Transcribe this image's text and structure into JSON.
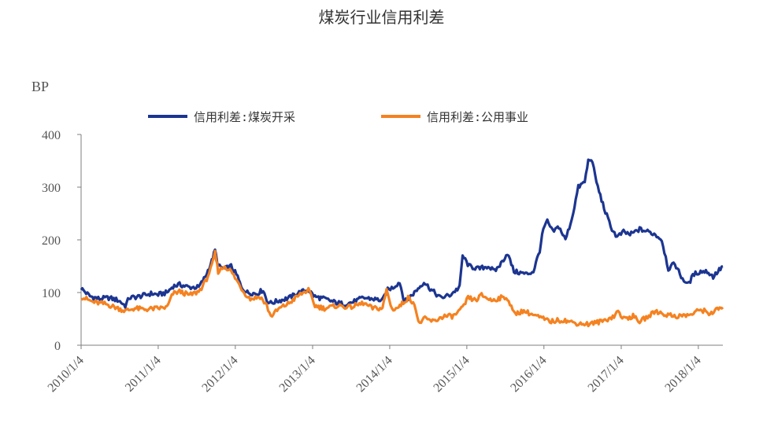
{
  "page": {
    "title": "煤炭行业信用利差"
  },
  "chart_data": {
    "type": "line",
    "title": "煤炭行业信用利差",
    "ylabel": "BP",
    "xlabel": "",
    "ylim": [
      0,
      400
    ],
    "yticks": [
      0,
      100,
      200,
      300,
      400
    ],
    "xlim": [
      "2010-01-04",
      "2018-04-30"
    ],
    "xticks": [
      "2010/1/4",
      "2011/1/4",
      "2012/1/4",
      "2013/1/4",
      "2014/1/4",
      "2015/1/4",
      "2016/1/4",
      "2017/1/4",
      "2018/1/4"
    ],
    "grid": false,
    "legend_position": "top",
    "series": [
      {
        "name": "信用利差:煤炭开采",
        "color": "#1c3591",
        "points": [
          [
            "2010-01-04",
            108
          ],
          [
            "2010-02-15",
            93
          ],
          [
            "2010-04-01",
            88
          ],
          [
            "2010-05-15",
            90
          ],
          [
            "2010-07-01",
            85
          ],
          [
            "2010-08-01",
            75
          ],
          [
            "2010-08-20",
            90
          ],
          [
            "2010-10-01",
            92
          ],
          [
            "2010-12-01",
            98
          ],
          [
            "2011-01-04",
            96
          ],
          [
            "2011-02-15",
            100
          ],
          [
            "2011-03-15",
            112
          ],
          [
            "2011-04-15",
            115
          ],
          [
            "2011-06-01",
            110
          ],
          [
            "2011-07-15",
            110
          ],
          [
            "2011-08-15",
            130
          ],
          [
            "2011-09-15",
            160
          ],
          [
            "2011-09-30",
            180
          ],
          [
            "2011-10-15",
            150
          ],
          [
            "2011-11-15",
            145
          ],
          [
            "2011-12-15",
            150
          ],
          [
            "2012-01-15",
            130
          ],
          [
            "2012-02-01",
            110
          ],
          [
            "2012-03-01",
            100
          ],
          [
            "2012-04-15",
            98
          ],
          [
            "2012-05-15",
            105
          ],
          [
            "2012-06-01",
            85
          ],
          [
            "2012-06-20",
            80
          ],
          [
            "2012-08-01",
            85
          ],
          [
            "2012-09-15",
            90
          ],
          [
            "2012-11-01",
            100
          ],
          [
            "2012-12-15",
            105
          ],
          [
            "2013-01-15",
            92
          ],
          [
            "2013-03-01",
            88
          ],
          [
            "2013-04-15",
            82
          ],
          [
            "2013-06-01",
            78
          ],
          [
            "2013-07-15",
            82
          ],
          [
            "2013-09-01",
            90
          ],
          [
            "2013-10-15",
            88
          ],
          [
            "2013-12-01",
            85
          ],
          [
            "2013-12-25",
            105
          ],
          [
            "2014-01-20",
            110
          ],
          [
            "2014-02-20",
            120
          ],
          [
            "2014-03-15",
            82
          ],
          [
            "2014-05-01",
            100
          ],
          [
            "2014-06-15",
            120
          ],
          [
            "2014-07-20",
            105
          ],
          [
            "2014-09-01",
            90
          ],
          [
            "2014-10-15",
            95
          ],
          [
            "2014-11-15",
            105
          ],
          [
            "2014-12-01",
            110
          ],
          [
            "2014-12-15",
            170
          ],
          [
            "2015-01-15",
            150
          ],
          [
            "2015-03-01",
            145
          ],
          [
            "2015-04-15",
            150
          ],
          [
            "2015-05-15",
            140
          ],
          [
            "2015-06-15",
            155
          ],
          [
            "2015-07-15",
            175
          ],
          [
            "2015-08-15",
            140
          ],
          [
            "2015-10-15",
            135
          ],
          [
            "2015-11-15",
            140
          ],
          [
            "2015-12-15",
            180
          ],
          [
            "2016-01-01",
            220
          ],
          [
            "2016-01-20",
            235
          ],
          [
            "2016-02-15",
            215
          ],
          [
            "2016-03-15",
            225
          ],
          [
            "2016-04-15",
            200
          ],
          [
            "2016-05-15",
            240
          ],
          [
            "2016-06-15",
            300
          ],
          [
            "2016-07-15",
            310
          ],
          [
            "2016-08-01",
            350
          ],
          [
            "2016-08-15",
            355
          ],
          [
            "2016-09-15",
            300
          ],
          [
            "2016-10-15",
            260
          ],
          [
            "2016-11-15",
            225
          ],
          [
            "2016-12-15",
            205
          ],
          [
            "2017-01-15",
            215
          ],
          [
            "2017-02-15",
            210
          ],
          [
            "2017-04-01",
            220
          ],
          [
            "2017-05-15",
            215
          ],
          [
            "2017-06-15",
            210
          ],
          [
            "2017-07-15",
            200
          ],
          [
            "2017-08-15",
            145
          ],
          [
            "2017-09-15",
            155
          ],
          [
            "2017-10-15",
            130
          ],
          [
            "2017-11-15",
            115
          ],
          [
            "2017-12-15",
            135
          ],
          [
            "2018-01-15",
            140
          ],
          [
            "2018-02-15",
            140
          ],
          [
            "2018-03-15",
            130
          ],
          [
            "2018-04-30",
            150
          ]
        ]
      },
      {
        "name": "信用利差:公用事业",
        "color": "#f58220",
        "points": [
          [
            "2010-01-04",
            92
          ],
          [
            "2010-03-01",
            82
          ],
          [
            "2010-05-01",
            78
          ],
          [
            "2010-06-15",
            72
          ],
          [
            "2010-08-01",
            65
          ],
          [
            "2010-09-15",
            70
          ],
          [
            "2010-11-01",
            68
          ],
          [
            "2011-01-04",
            70
          ],
          [
            "2011-02-15",
            72
          ],
          [
            "2011-03-15",
            98
          ],
          [
            "2011-04-15",
            102
          ],
          [
            "2011-06-01",
            95
          ],
          [
            "2011-07-15",
            102
          ],
          [
            "2011-08-15",
            120
          ],
          [
            "2011-09-15",
            150
          ],
          [
            "2011-09-30",
            175
          ],
          [
            "2011-10-15",
            140
          ],
          [
            "2011-11-15",
            150
          ],
          [
            "2011-12-15",
            140
          ],
          [
            "2012-01-15",
            120
          ],
          [
            "2012-02-15",
            100
          ],
          [
            "2012-03-15",
            88
          ],
          [
            "2012-05-01",
            92
          ],
          [
            "2012-06-01",
            75
          ],
          [
            "2012-06-20",
            55
          ],
          [
            "2012-08-01",
            70
          ],
          [
            "2012-09-15",
            80
          ],
          [
            "2012-11-01",
            95
          ],
          [
            "2012-12-15",
            105
          ],
          [
            "2013-01-15",
            75
          ],
          [
            "2013-03-01",
            70
          ],
          [
            "2013-05-01",
            75
          ],
          [
            "2013-07-01",
            72
          ],
          [
            "2013-09-01",
            80
          ],
          [
            "2013-10-15",
            70
          ],
          [
            "2013-12-01",
            70
          ],
          [
            "2013-12-20",
            105
          ],
          [
            "2014-01-15",
            68
          ],
          [
            "2014-02-15",
            72
          ],
          [
            "2014-04-01",
            90
          ],
          [
            "2014-05-01",
            80
          ],
          [
            "2014-05-20",
            42
          ],
          [
            "2014-06-20",
            50
          ],
          [
            "2014-08-01",
            45
          ],
          [
            "2014-09-15",
            55
          ],
          [
            "2014-11-01",
            55
          ],
          [
            "2014-12-15",
            70
          ],
          [
            "2015-01-10",
            90
          ],
          [
            "2015-02-15",
            85
          ],
          [
            "2015-03-15",
            95
          ],
          [
            "2015-05-01",
            85
          ],
          [
            "2015-06-15",
            90
          ],
          [
            "2015-07-15",
            90
          ],
          [
            "2015-08-15",
            60
          ],
          [
            "2015-10-01",
            65
          ],
          [
            "2015-12-01",
            55
          ],
          [
            "2016-02-01",
            45
          ],
          [
            "2016-04-01",
            48
          ],
          [
            "2016-06-01",
            42
          ],
          [
            "2016-08-01",
            40
          ],
          [
            "2016-10-01",
            45
          ],
          [
            "2016-12-01",
            55
          ],
          [
            "2016-12-20",
            65
          ],
          [
            "2017-01-15",
            50
          ],
          [
            "2017-03-01",
            55
          ],
          [
            "2017-04-01",
            45
          ],
          [
            "2017-05-15",
            55
          ],
          [
            "2017-06-15",
            65
          ],
          [
            "2017-08-01",
            58
          ],
          [
            "2017-10-01",
            55
          ],
          [
            "2017-12-01",
            58
          ],
          [
            "2018-01-15",
            68
          ],
          [
            "2018-03-01",
            60
          ],
          [
            "2018-04-15",
            70
          ],
          [
            "2018-04-30",
            72
          ]
        ]
      }
    ]
  }
}
